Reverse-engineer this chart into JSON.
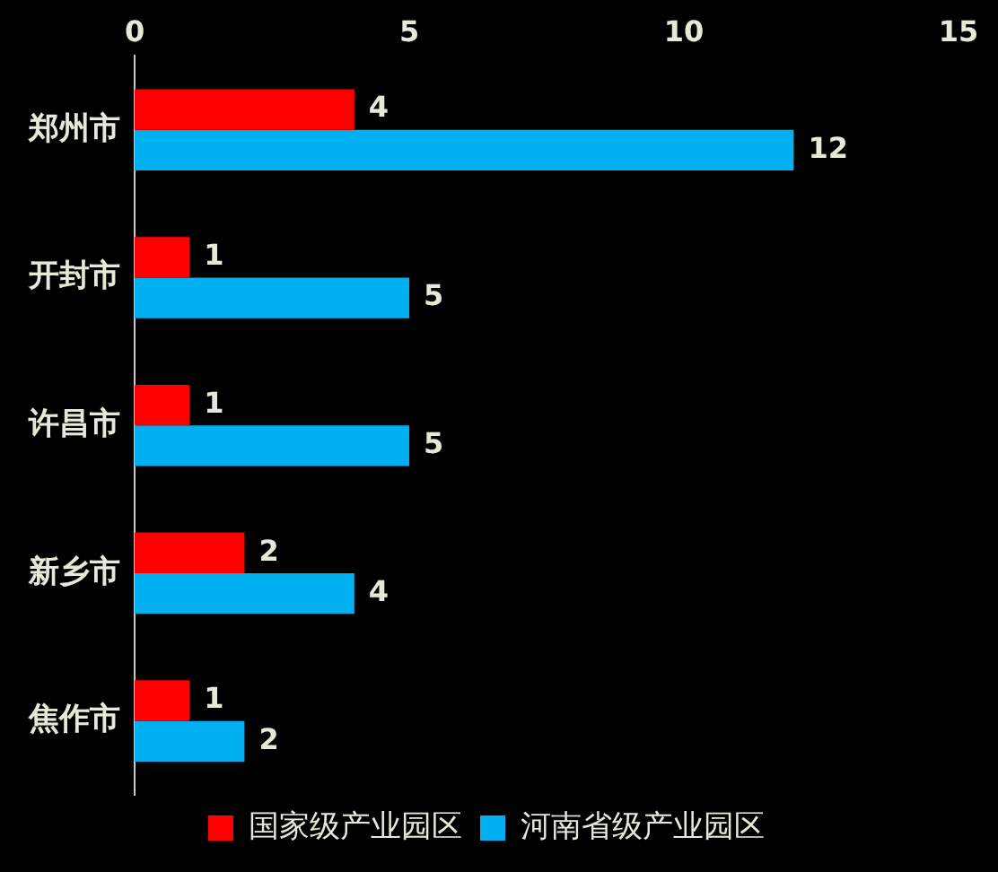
{
  "chart_data": {
    "type": "bar",
    "orientation": "horizontal",
    "categories": [
      "郑州市",
      "开封市",
      "许昌市",
      "新乡市",
      "焦作市"
    ],
    "series": [
      {
        "name": "国家级产业园区",
        "color": "#ff0000",
        "values": [
          4,
          1,
          1,
          2,
          1
        ]
      },
      {
        "name": "河南省级产业园区",
        "color": "#00b0f0",
        "values": [
          12,
          5,
          5,
          4,
          2
        ]
      }
    ],
    "xlim": [
      0,
      15
    ],
    "xticks": [
      0,
      5,
      10,
      15
    ],
    "grid": false,
    "legend": "bottom",
    "data_labels": true
  }
}
